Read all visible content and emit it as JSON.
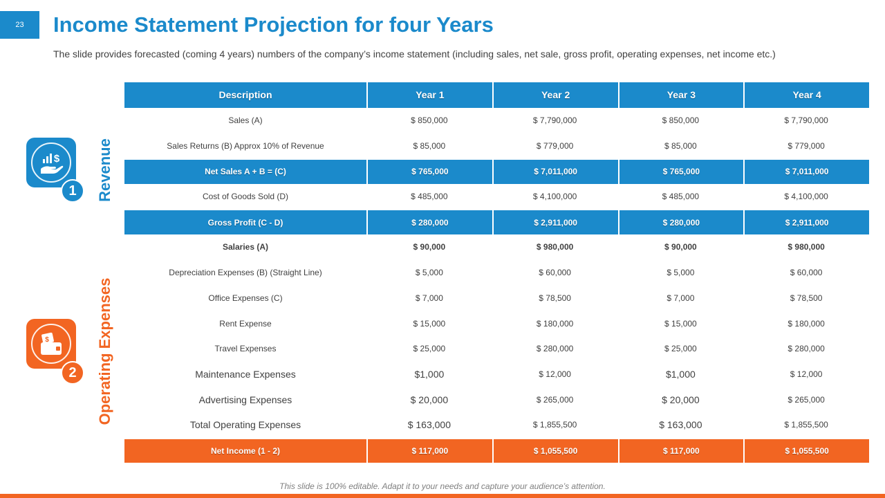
{
  "slide": {
    "number": "23",
    "title": "Income Statement Projection for four Years",
    "subtitle": "The slide provides forecasted (coming 4 years) numbers of the company’s income statement (including sales, net sale, gross profit, operating expenses, net income etc.)",
    "footnote": "This slide is 100% editable. Adapt it to your needs and capture your audience’s attention."
  },
  "colors": {
    "blue": "#1B8ACB",
    "orange": "#F26522",
    "text": "#404040"
  },
  "sections": {
    "revenue": {
      "label": "Revenue",
      "badge": "1",
      "icon": "money-hand-chart-icon"
    },
    "opex": {
      "label": "Operating Expenses",
      "badge": "2",
      "icon": "wallet-cash-icon"
    }
  },
  "table": {
    "headers": [
      "Description",
      "Year 1",
      "Year 2",
      "Year 3",
      "Year 4"
    ],
    "rows": [
      [
        "Sales (A)",
        "$ 850,000",
        "$ 7,790,000",
        "$ 850,000",
        "$ 7,790,000"
      ],
      [
        "Sales Returns (B) Approx 10% of Revenue",
        "$ 85,000",
        "$ 779,000",
        "$ 85,000",
        "$ 779,000"
      ],
      [
        "Net Sales A + B = (C)",
        "$ 765,000",
        "$ 7,011,000",
        "$ 765,000",
        "$ 7,011,000"
      ],
      [
        "Cost of Goods Sold (D)",
        "$ 485,000",
        "$ 4,100,000",
        "$ 485,000",
        "$ 4,100,000"
      ],
      [
        "Gross Profit (C - D)",
        "$ 280,000",
        "$ 2,911,000",
        "$ 280,000",
        "$ 2,911,000"
      ],
      [
        "Salaries (A)",
        "$ 90,000",
        "$ 980,000",
        "$ 90,000",
        "$ 980,000"
      ],
      [
        "Depreciation Expenses (B) (Straight Line)",
        "$ 5,000",
        "$ 60,000",
        "$ 5,000",
        "$ 60,000"
      ],
      [
        "Office Expenses (C)",
        "$ 7,000",
        "$ 78,500",
        "$ 7,000",
        "$ 78,500"
      ],
      [
        "Rent Expense",
        "$ 15,000",
        "$ 180,000",
        "$ 15,000",
        "$ 180,000"
      ],
      [
        "Travel Expenses",
        "$ 25,000",
        "$ 280,000",
        "$ 25,000",
        "$ 280,000"
      ],
      [
        "Maintenance Expenses",
        "$1,000",
        "$ 12,000",
        "$1,000",
        "$ 12,000"
      ],
      [
        "Advertising Expenses",
        "$ 20,000",
        "$ 265,000",
        "$ 20,000",
        "$ 265,000"
      ],
      [
        "Total Operating Expenses",
        "$ 163,000",
        "$ 1,855,500",
        "$ 163,000",
        "$ 1,855,500"
      ],
      [
        "Net Income (1 - 2)",
        "$ 117,000",
        "$ 1,055,500",
        "$ 117,000",
        "$ 1,055,500"
      ]
    ]
  }
}
